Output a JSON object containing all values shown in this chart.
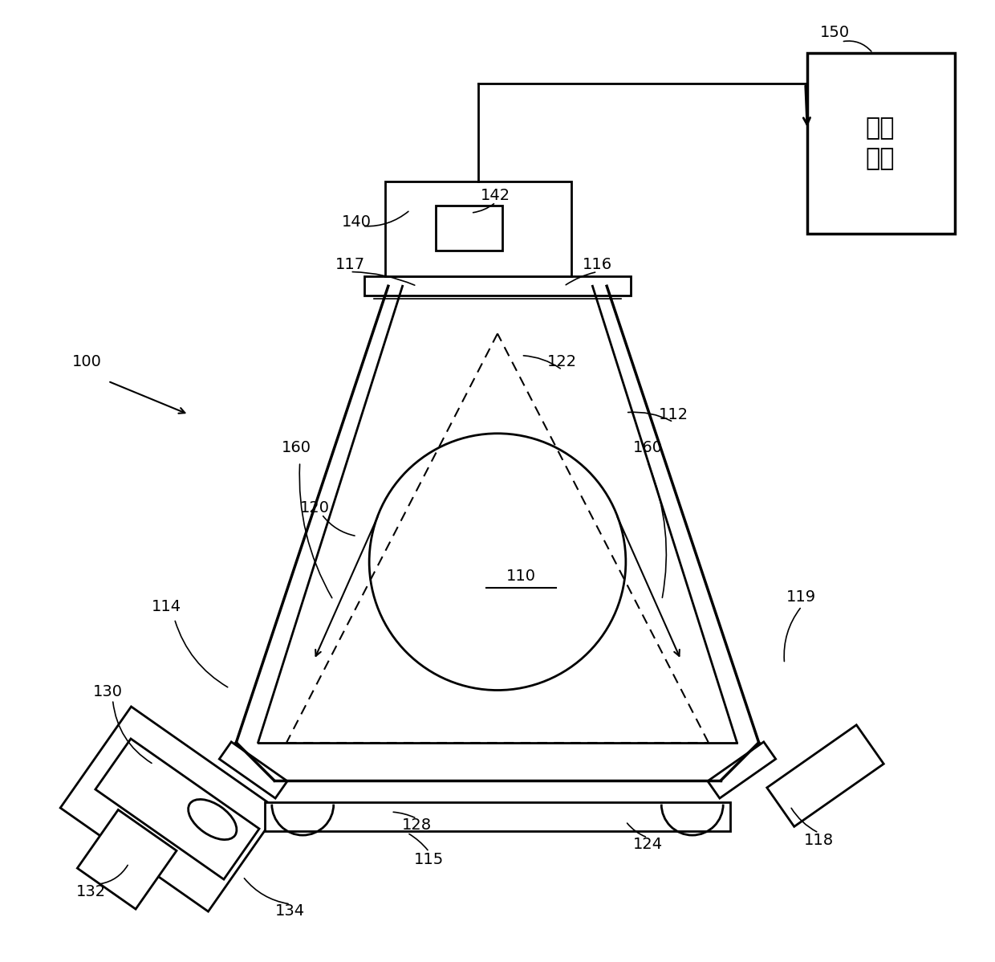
{
  "bg_color": "#ffffff",
  "line_color": "#000000",
  "figsize": [
    12.4,
    11.98
  ],
  "processing_unit_text": "处理\n单元"
}
